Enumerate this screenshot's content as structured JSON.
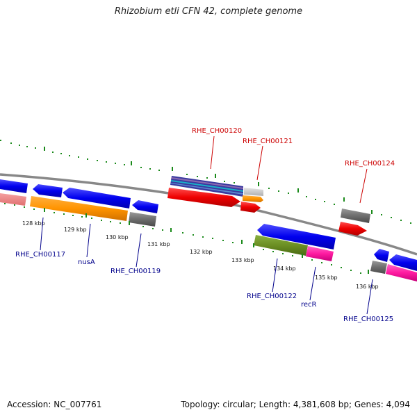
{
  "title": "Rhizobium etli CFN 42, complete genome",
  "accession_text": "Accession: NC_007761",
  "summary_text": "Topology: circular; Length: 4,381,608 bp; Genes: 4,094",
  "colors": {
    "backbone": "#888888",
    "tick": "#1a8a1a",
    "forward_label": "#cc0000",
    "reverse_label": "#00008b"
  },
  "ticks": [
    "128 kbp",
    "129 kbp",
    "130 kbp",
    "131 kbp",
    "132 kbp",
    "133 kbp",
    "134 kbp",
    "135 kbp",
    "136 kbp"
  ],
  "gene_labels": {
    "forward": [
      "RHE_CH00120",
      "RHE_CH00121",
      "RHE_CH00124"
    ],
    "reverse": [
      "RHE_CH00117",
      "nusA",
      "RHE_CH00119",
      "RHE_CH00122",
      "recR",
      "RHE_CH00125"
    ]
  },
  "features": [
    {
      "name": "feature-blue-left-edge",
      "color": "blue"
    },
    {
      "name": "feature-blue-nusA-a",
      "color": "blue"
    },
    {
      "name": "feature-blue-nusA-b",
      "color": "blue"
    },
    {
      "name": "feature-blue-00119",
      "color": "blue"
    },
    {
      "name": "feature-salmon-left-edge",
      "color": "salmon"
    },
    {
      "name": "feature-orange-nusA",
      "color": "orange"
    },
    {
      "name": "feature-grey-00119",
      "color": "grey"
    },
    {
      "name": "feature-multi-00120",
      "color": "purple/cyan"
    },
    {
      "name": "feature-red-00120",
      "color": "red"
    },
    {
      "name": "feature-lightgrey-00121",
      "color": "lightgrey"
    },
    {
      "name": "feature-orange-00121",
      "color": "orange"
    },
    {
      "name": "feature-red-00121",
      "color": "red"
    },
    {
      "name": "feature-grey-00124",
      "color": "grey"
    },
    {
      "name": "feature-red-00124",
      "color": "red"
    },
    {
      "name": "feature-blue-00122",
      "color": "blue"
    },
    {
      "name": "feature-olive-00122",
      "color": "olive"
    },
    {
      "name": "feature-magenta-recR",
      "color": "magenta"
    },
    {
      "name": "feature-blue-00125",
      "color": "blue"
    },
    {
      "name": "feature-grey-00125",
      "color": "grey"
    },
    {
      "name": "feature-magenta-00125",
      "color": "magenta"
    }
  ]
}
